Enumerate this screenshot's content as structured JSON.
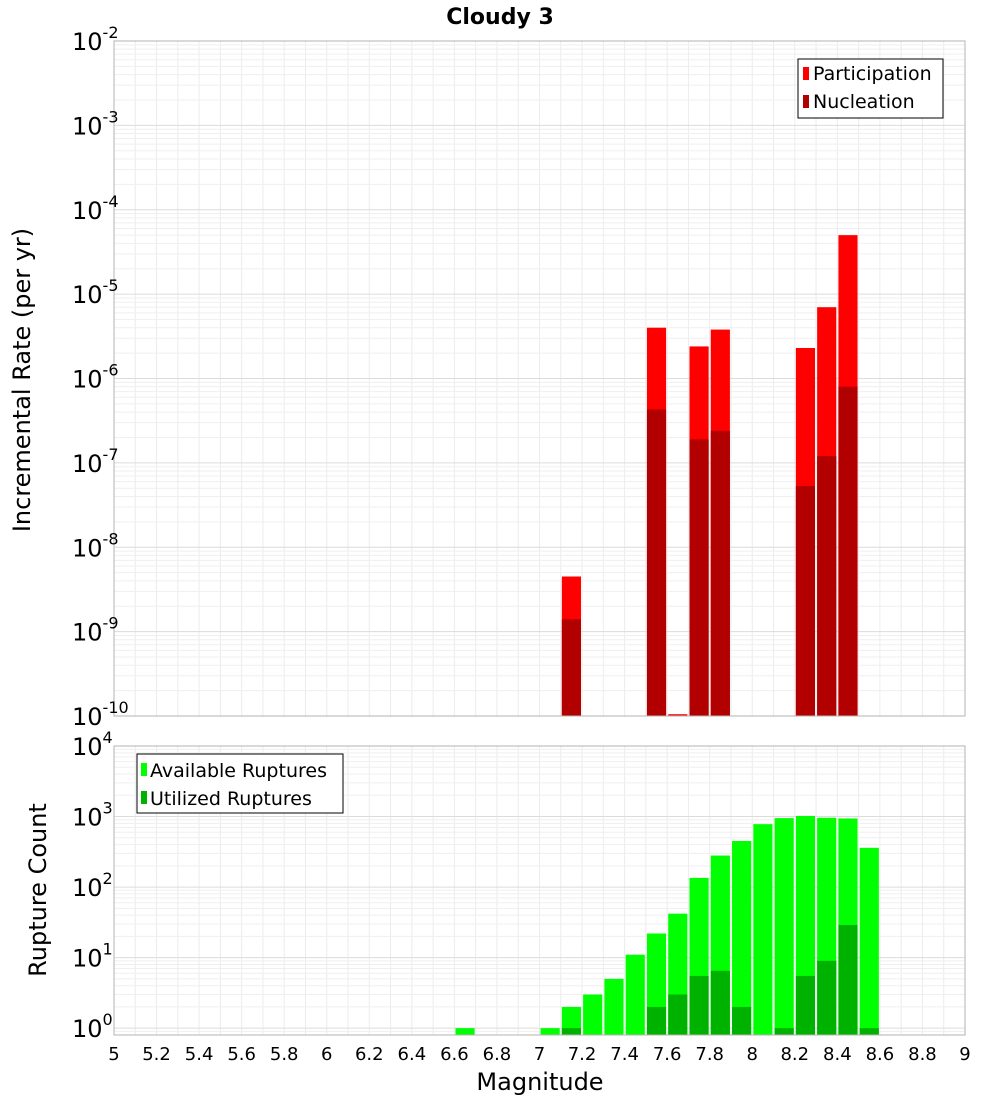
{
  "chart_data": [
    {
      "type": "bar",
      "title": "Cloudy 3",
      "ylabel": "Incremental Rate (per yr)",
      "xlabel": "",
      "y_scale": "log",
      "ylim": [
        1e-10,
        0.01
      ],
      "xlim": [
        5,
        9
      ],
      "grid": true,
      "legend_position": "top-right",
      "y_ticks": [
        {
          "exp": "-10"
        },
        {
          "exp": "-9"
        },
        {
          "exp": "-8"
        },
        {
          "exp": "-7"
        },
        {
          "exp": "-6"
        },
        {
          "exp": "-5"
        },
        {
          "exp": "-4"
        },
        {
          "exp": "-3"
        },
        {
          "exp": "-2"
        }
      ],
      "series": [
        {
          "name": "Participation",
          "color": "#ff0000",
          "points": [
            {
              "x": 7.15,
              "y": 4.5e-09
            },
            {
              "x": 7.55,
              "y": 4e-06
            },
            {
              "x": 7.65,
              "y": 1.05e-10
            },
            {
              "x": 7.75,
              "y": 2.4e-06
            },
            {
              "x": 7.85,
              "y": 3.8e-06
            },
            {
              "x": 8.25,
              "y": 2.3e-06
            },
            {
              "x": 8.35,
              "y": 7e-06
            },
            {
              "x": 8.45,
              "y": 5e-05
            }
          ]
        },
        {
          "name": "Nucleation",
          "color": "#b20000",
          "points": [
            {
              "x": 7.15,
              "y": 1.4e-09
            },
            {
              "x": 7.55,
              "y": 4.3e-07
            },
            {
              "x": 7.75,
              "y": 1.9e-07
            },
            {
              "x": 7.85,
              "y": 2.4e-07
            },
            {
              "x": 8.25,
              "y": 5.3e-08
            },
            {
              "x": 8.35,
              "y": 1.2e-07
            },
            {
              "x": 8.45,
              "y": 8e-07
            }
          ]
        }
      ]
    },
    {
      "type": "bar",
      "title": "",
      "ylabel": "Rupture Count",
      "xlabel": "Magnitude",
      "y_scale": "log",
      "ylim": [
        0.8,
        10000
      ],
      "xlim": [
        5,
        9
      ],
      "grid": true,
      "legend_position": "top-left",
      "x_ticks": [
        "5",
        "5.2",
        "5.4",
        "5.6",
        "5.8",
        "6",
        "6.2",
        "6.4",
        "6.6",
        "6.8",
        "7",
        "7.2",
        "7.4",
        "7.6",
        "7.8",
        "8",
        "8.2",
        "8.4",
        "8.6",
        "8.8",
        "9"
      ],
      "y_ticks": [
        {
          "exp": "0"
        },
        {
          "exp": "1"
        },
        {
          "exp": "2"
        },
        {
          "exp": "3"
        },
        {
          "exp": "4"
        }
      ],
      "series": [
        {
          "name": "Available Ruptures",
          "color": "#00ff00",
          "points": [
            {
              "x": 6.65,
              "y": 1
            },
            {
              "x": 7.05,
              "y": 1
            },
            {
              "x": 7.15,
              "y": 2
            },
            {
              "x": 7.25,
              "y": 3
            },
            {
              "x": 7.35,
              "y": 5
            },
            {
              "x": 7.45,
              "y": 11
            },
            {
              "x": 7.55,
              "y": 22
            },
            {
              "x": 7.65,
              "y": 42
            },
            {
              "x": 7.75,
              "y": 135
            },
            {
              "x": 7.85,
              "y": 280
            },
            {
              "x": 7.95,
              "y": 450
            },
            {
              "x": 8.05,
              "y": 780
            },
            {
              "x": 8.15,
              "y": 950
            },
            {
              "x": 8.25,
              "y": 1020
            },
            {
              "x": 8.35,
              "y": 960
            },
            {
              "x": 8.45,
              "y": 940
            },
            {
              "x": 8.55,
              "y": 360
            }
          ]
        },
        {
          "name": "Utilized Ruptures",
          "color": "#00b200",
          "points": [
            {
              "x": 7.15,
              "y": 1
            },
            {
              "x": 7.55,
              "y": 2
            },
            {
              "x": 7.65,
              "y": 3
            },
            {
              "x": 7.75,
              "y": 5.5
            },
            {
              "x": 7.85,
              "y": 6.5
            },
            {
              "x": 7.95,
              "y": 2
            },
            {
              "x": 8.15,
              "y": 1
            },
            {
              "x": 8.25,
              "y": 5.5
            },
            {
              "x": 8.35,
              "y": 9
            },
            {
              "x": 8.45,
              "y": 29
            },
            {
              "x": 8.55,
              "y": 1
            }
          ]
        }
      ]
    }
  ]
}
